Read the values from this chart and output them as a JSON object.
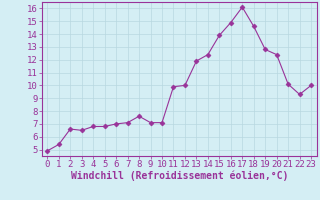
{
  "x": [
    0,
    1,
    2,
    3,
    4,
    5,
    6,
    7,
    8,
    9,
    10,
    11,
    12,
    13,
    14,
    15,
    16,
    17,
    18,
    19,
    20,
    21,
    22,
    23
  ],
  "y": [
    4.9,
    5.4,
    6.6,
    6.5,
    6.8,
    6.8,
    7.0,
    7.1,
    7.6,
    7.1,
    7.1,
    9.9,
    10.0,
    11.9,
    12.4,
    13.9,
    14.9,
    16.1,
    14.6,
    12.8,
    12.4,
    10.1,
    9.3,
    10.0
  ],
  "line_color": "#993399",
  "marker": "D",
  "marker_size": 2.5,
  "bg_color": "#d4eef4",
  "grid_color": "#b8d8e0",
  "xlabel": "Windchill (Refroidissement éolien,°C)",
  "xlim": [
    -0.5,
    23.5
  ],
  "ylim": [
    4.5,
    16.5
  ],
  "yticks": [
    5,
    6,
    7,
    8,
    9,
    10,
    11,
    12,
    13,
    14,
    15,
    16
  ],
  "xticks": [
    0,
    1,
    2,
    3,
    4,
    5,
    6,
    7,
    8,
    9,
    10,
    11,
    12,
    13,
    14,
    15,
    16,
    17,
    18,
    19,
    20,
    21,
    22,
    23
  ],
  "tick_color": "#993399",
  "label_color": "#993399",
  "spine_color": "#993399",
  "font_size": 6.5,
  "xlabel_fontsize": 7.0
}
